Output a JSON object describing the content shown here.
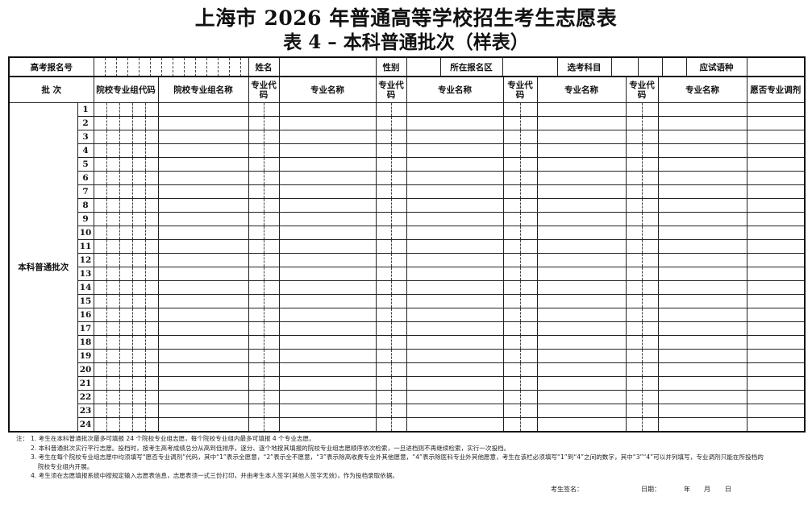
{
  "title": {
    "line1": "上海市 2026 年普通高等学校招生考生志愿表",
    "line2": "表 4 –  本科普通批次（样表）"
  },
  "info_row": {
    "exam_no_label": "高考报名号",
    "name_label": "姓名",
    "gender_label": "性别",
    "district_label": "所在报名区",
    "subjects_label": "选考科目",
    "language_label": "应试语种"
  },
  "headers": {
    "batch": "批  次",
    "group_code": "院校专业组代码",
    "group_name": "院校专业组名称",
    "major_code": "专业代码",
    "major_name": "专业名称",
    "adjust": "愿否专业调剂"
  },
  "batch_label": "本科普通批次",
  "rows": [
    "1",
    "2",
    "3",
    "4",
    "5",
    "6",
    "7",
    "8",
    "9",
    "10",
    "11",
    "12",
    "13",
    "14",
    "15",
    "16",
    "17",
    "18",
    "19",
    "20",
    "21",
    "22",
    "23",
    "24"
  ],
  "notes": {
    "prefix": "注：",
    "items": [
      "1. 考生在本科普通批次最多可填报 24 个院校专业组志愿，每个院校专业组内最多可填报 4 个专业志愿。",
      "2. 本科普通批次实行平行志愿。投档时，按考生高考成绩总分从高到低排序，逐分、逐个地按其填报的院校专业组志愿顺序依次检索，一旦进档则不再继续检索，实行一次投档。",
      "3. 考生在每个院校专业组志愿中均须填写“愿否专业调剂”代码，其中“1”表示全愿意，“2”表示全不愿意，“3”表示除高收费专业外其他愿意，“4”表示除医科专业外其他愿意，考生在该栏必须填写“1”到“4”之间的数字，其中“3”“4”可以并列填写，专业调剂只能在所投档的院校专业组内开展。",
      "4. 考生须在志愿填报系统中按规定输入志愿表信息，志愿表须一式三份打印，并由考生本人签字(其他人签字无效)，作为投档录取依据。"
    ]
  },
  "signature": {
    "sign_label": "考生签名：",
    "date_label": "日期：",
    "year": "年",
    "month": "月",
    "day": "日"
  }
}
